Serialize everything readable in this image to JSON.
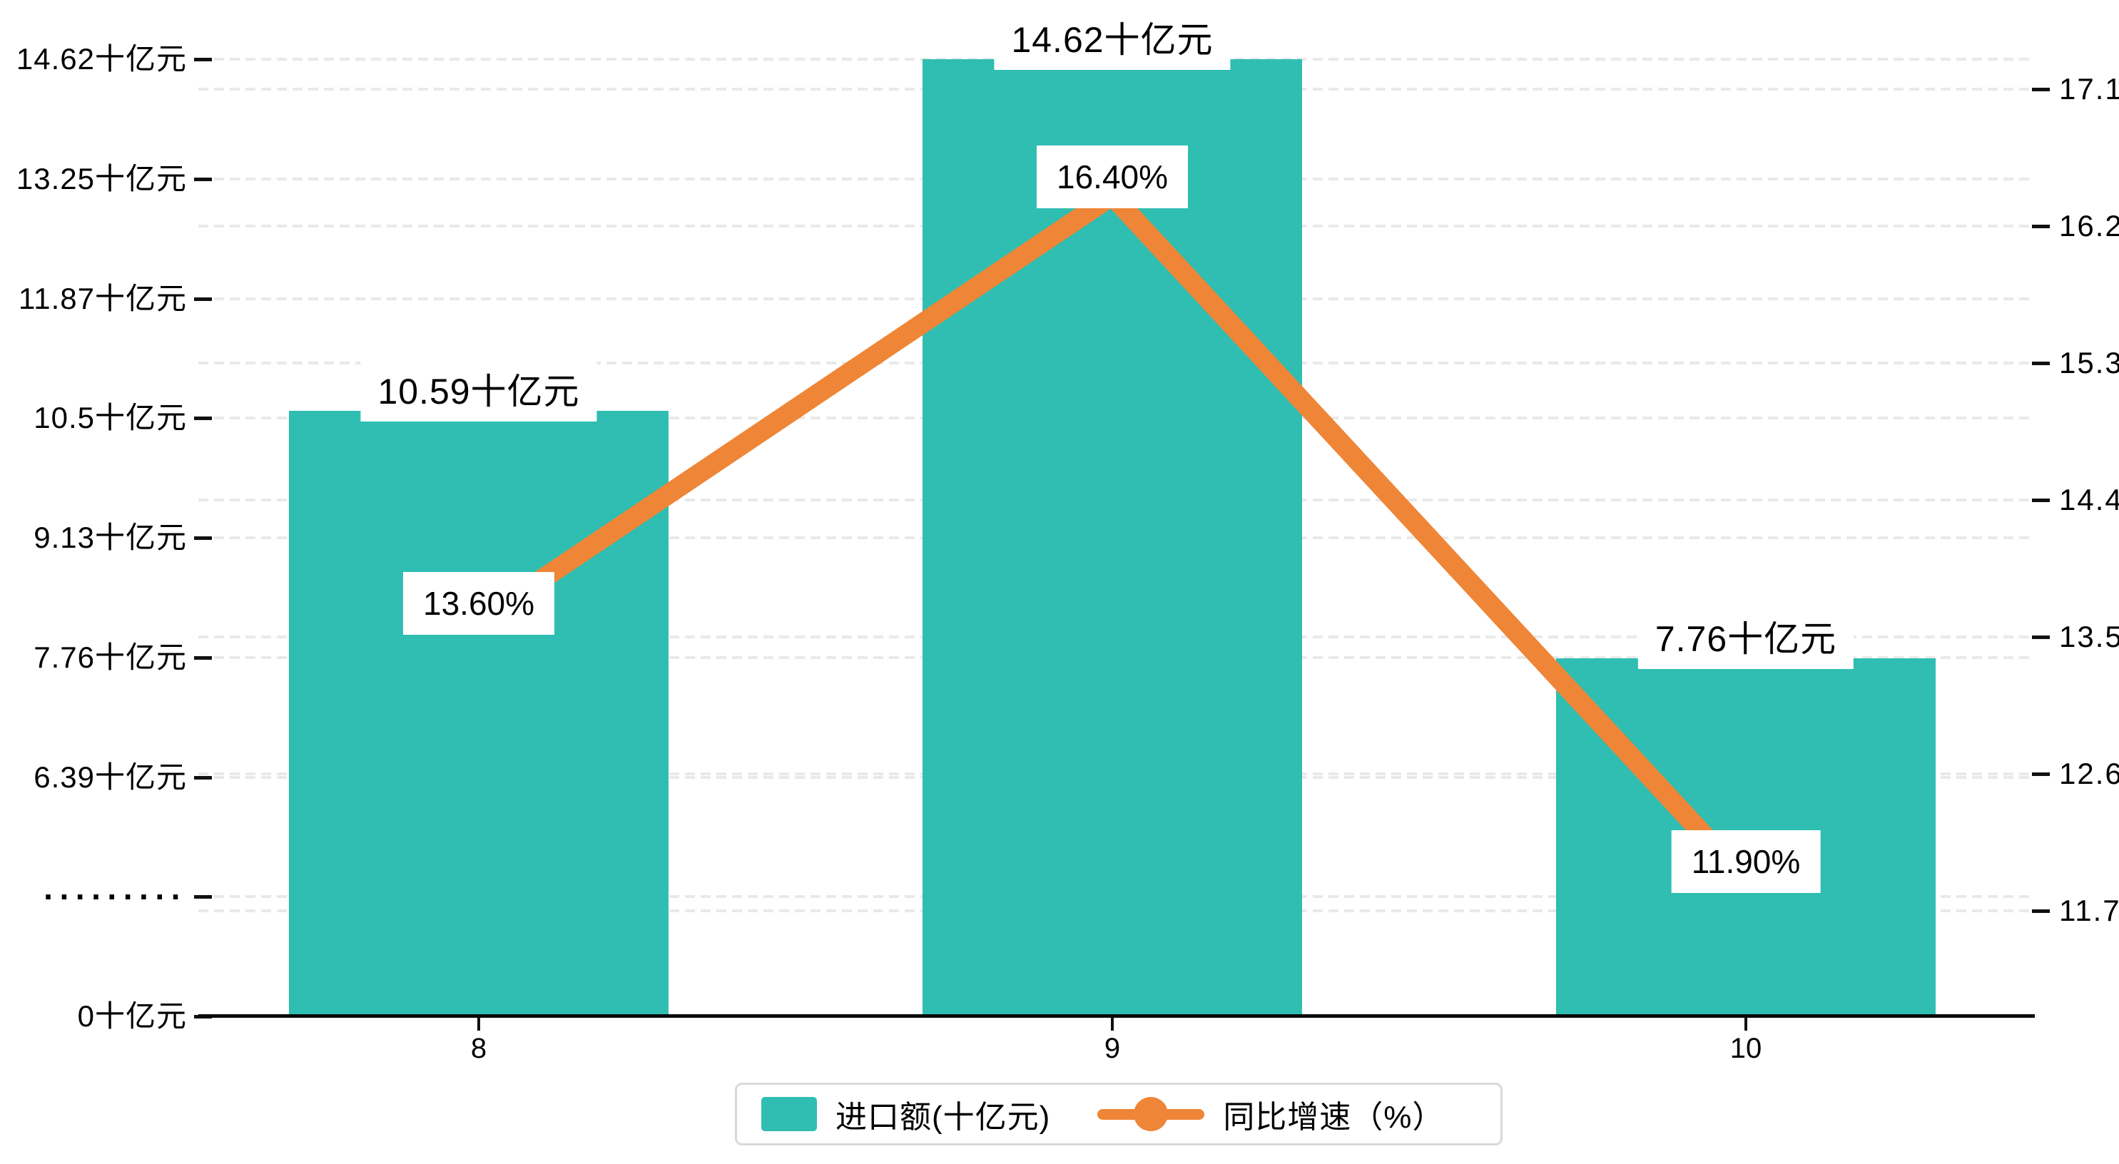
{
  "chart_data": {
    "type": "bar+line",
    "categories": [
      "8",
      "9",
      "10"
    ],
    "series": [
      {
        "name": "进口额(十亿元)",
        "type": "bar",
        "axis": "left",
        "color": "#2FBEB1",
        "values": [
          10.59,
          14.62,
          7.76
        ],
        "data_labels": [
          "10.59十亿元",
          "14.62十亿元",
          "7.76十亿元"
        ]
      },
      {
        "name": "同比增速（%）",
        "type": "line",
        "axis": "right",
        "color": "#EF8537",
        "values": [
          13.6,
          16.4,
          11.9
        ],
        "data_labels": [
          "13.60%",
          "16.40%",
          "11.90%"
        ]
      }
    ],
    "left_axis": {
      "tick_labels": [
        "14.62十亿元",
        "13.25十亿元",
        "11.87十亿元",
        "10.5十亿元",
        "9.13十亿元",
        "7.76十亿元",
        "6.39十亿元",
        "·········",
        "0十亿元"
      ],
      "tick_values": [
        14.62,
        13.25,
        11.87,
        10.5,
        9.13,
        7.76,
        6.39,
        null,
        0
      ],
      "has_scale_break": true,
      "unit": "十亿元"
    },
    "right_axis": {
      "tick_labels": [
        "17.1",
        "16.2",
        "15.3",
        "14.4",
        "13.5",
        "12.6",
        "11.7"
      ],
      "min": 11.7,
      "max": 17.1,
      "step": 0.9,
      "unit": "%"
    },
    "xlabel": "",
    "ylabel": "",
    "title": "",
    "grid": true,
    "legend_position": "bottom",
    "legend": {
      "items": [
        {
          "label": "进口额(十亿元)",
          "marker": "bar-swatch",
          "color": "#2FBEB1"
        },
        {
          "label": "同比增速（%）",
          "marker": "line-dot",
          "color": "#EF8537"
        }
      ]
    }
  },
  "colors": {
    "bar": "#2FBEB1",
    "line": "#EF8537",
    "grid": "#e9e9e9",
    "axis": "#0a0a0a",
    "text": "#000000",
    "label_bg": "#ffffff",
    "legend_border": "#d9d9d9"
  }
}
